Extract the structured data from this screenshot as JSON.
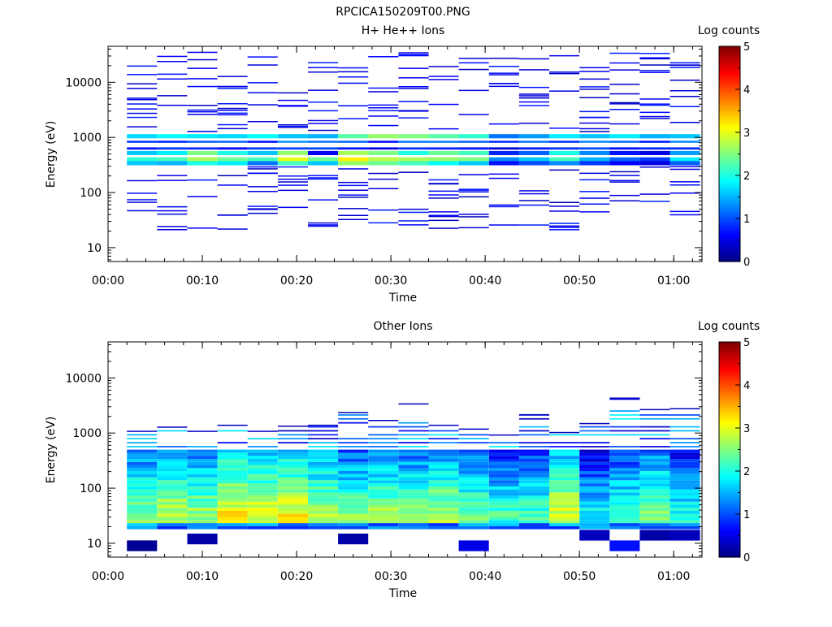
{
  "figure": {
    "title": "RPCICA150209T00.PNG"
  },
  "chart_data": [
    {
      "type": "heatmap",
      "title": "H+ He++ Ions",
      "xlabel": "Time",
      "ylabel": "Energy (eV)",
      "yscale": "log",
      "ylim": [
        5.6,
        45000
      ],
      "xlim": [
        "00:00",
        "01:03"
      ],
      "x_ticks": [
        "00:00",
        "00:10",
        "00:20",
        "00:30",
        "00:40",
        "00:50",
        "01:00"
      ],
      "y_ticks": [
        "10",
        "100",
        "1000",
        "10000"
      ],
      "colorbar": {
        "label": "Log counts",
        "range": [
          0,
          5
        ],
        "ticks": [
          "0",
          "1",
          "2",
          "3",
          "4",
          "5"
        ]
      },
      "time_bins_min": [
        2,
        5.2,
        8.4,
        11.6,
        14.8,
        18,
        21.2,
        24.4,
        27.6,
        30.8,
        34,
        37.2,
        40.4,
        43.6,
        46.8,
        50,
        53.2,
        56.4,
        59.6
      ],
      "bin_width_min": 3.2,
      "band_center_eV": [
        1050,
        520,
        400,
        340
      ],
      "band_values": [
        [
          1.7,
          1.6,
          2.1,
          1.6
        ],
        [
          1.9,
          1.8,
          2.2,
          1.5
        ],
        [
          1.8,
          2.5,
          2.7,
          2.0
        ],
        [
          1.7,
          2.0,
          2.4,
          1.8
        ],
        [
          1.9,
          1.6,
          2.2,
          1.2
        ],
        [
          1.6,
          2.6,
          3.0,
          2.2
        ],
        [
          1.5,
          0.6,
          2.4,
          1.6
        ],
        [
          2.3,
          2.7,
          3.2,
          2.6
        ],
        [
          2.6,
          2.5,
          2.8,
          2.4
        ],
        [
          2.5,
          2.0,
          2.7,
          2.2
        ],
        [
          2.3,
          2.4,
          2.6,
          1.9
        ],
        [
          2.1,
          2.2,
          2.5,
          1.6
        ],
        [
          1.2,
          0.8,
          1.3,
          0.7
        ],
        [
          1.4,
          1.1,
          1.6,
          1.0
        ],
        [
          1.8,
          2.0,
          2.2,
          1.3
        ],
        [
          1.6,
          1.3,
          1.5,
          0.9
        ],
        [
          1.8,
          0.7,
          1.1,
          0.6
        ],
        [
          1.5,
          0.5,
          0.9,
          0.5
        ],
        [
          1.6,
          1.4,
          1.8,
          1.1
        ]
      ],
      "sparse_value": 0.3
    },
    {
      "type": "heatmap",
      "title": "Other Ions",
      "xlabel": "Time",
      "ylabel": "Energy (eV)",
      "yscale": "log",
      "ylim": [
        5.6,
        45000
      ],
      "xlim": [
        "00:00",
        "01:03"
      ],
      "x_ticks": [
        "00:00",
        "00:10",
        "00:20",
        "00:30",
        "00:40",
        "00:50",
        "01:00"
      ],
      "y_ticks": [
        "10",
        "100",
        "1000",
        "10000"
      ],
      "colorbar": {
        "label": "Log counts",
        "range": [
          0,
          5
        ],
        "ticks": [
          "0",
          "1",
          "2",
          "3",
          "4",
          "5"
        ]
      },
      "time_bins_min": [
        2,
        5.2,
        8.4,
        11.6,
        14.8,
        18,
        21.2,
        24.4,
        27.6,
        30.8,
        34,
        37.2,
        40.4,
        43.6,
        46.8,
        50,
        53.2,
        56.4,
        59.6
      ],
      "bin_width_min": 3.2,
      "dense_band_eV": [
        18,
        500
      ],
      "peak_energy_eV": 32,
      "peak_values": [
        2.6,
        2.9,
        2.7,
        3.2,
        3.0,
        3.1,
        2.8,
        2.5,
        2.7,
        2.6,
        2.8,
        2.5,
        2.2,
        2.3,
        3.0,
        2.0,
        2.3,
        2.6,
        2.1
      ],
      "top_energy_eV": [
        1050,
        1250,
        1050,
        1350,
        1050,
        1300,
        1350,
        2300,
        1650,
        3300,
        1350,
        1150,
        900,
        2100,
        1000,
        1450,
        4200,
        2600,
        2700
      ],
      "low_energy_blocks": [
        {
          "t": 2,
          "eV": 9,
          "value": 0.1
        },
        {
          "t": 8.4,
          "eV": 12,
          "value": 0.2
        },
        {
          "t": 24.4,
          "eV": 12,
          "value": 0.2
        },
        {
          "t": 37.2,
          "eV": 9,
          "value": 0.5
        },
        {
          "t": 50,
          "eV": 14,
          "value": 0.3
        },
        {
          "t": 53.2,
          "eV": 9,
          "value": 0.7
        },
        {
          "t": 56.4,
          "eV": 14,
          "value": 0.2
        },
        {
          "t": 59.6,
          "eV": 14,
          "value": 0.3
        }
      ]
    }
  ]
}
